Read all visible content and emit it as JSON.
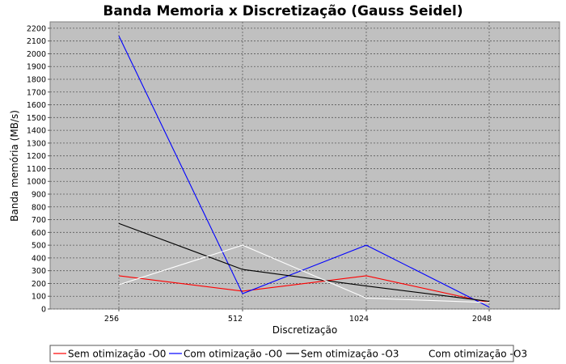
{
  "chart_data": {
    "type": "line",
    "title": "Banda Memoria x Discretização (Gauss Seidel)",
    "xlabel": "Discretização",
    "ylabel": "Banda memória (MB/s)",
    "categories": [
      "256",
      "512",
      "1024",
      "2048"
    ],
    "ylim": [
      0,
      2250
    ],
    "yticks": [
      0,
      100,
      200,
      300,
      400,
      500,
      600,
      700,
      800,
      900,
      1000,
      1100,
      1200,
      1300,
      1400,
      1500,
      1600,
      1700,
      1800,
      1900,
      2000,
      2100,
      2200
    ],
    "grid": true,
    "legend_position": "bottom",
    "plot_background": "#c0c0c0",
    "series": [
      {
        "name": "Sem otimização -O0",
        "color": "#ff0000",
        "values": [
          260,
          140,
          260,
          50
        ]
      },
      {
        "name": "Com otimização -O0",
        "color": "#0000ff",
        "values": [
          2140,
          120,
          500,
          15
        ]
      },
      {
        "name": "Sem otimização -O3",
        "color": "#000000",
        "values": [
          670,
          310,
          180,
          60
        ]
      },
      {
        "name": "Com otimização -O3",
        "color": "#ffffff",
        "values": [
          190,
          500,
          85,
          50
        ]
      }
    ]
  }
}
